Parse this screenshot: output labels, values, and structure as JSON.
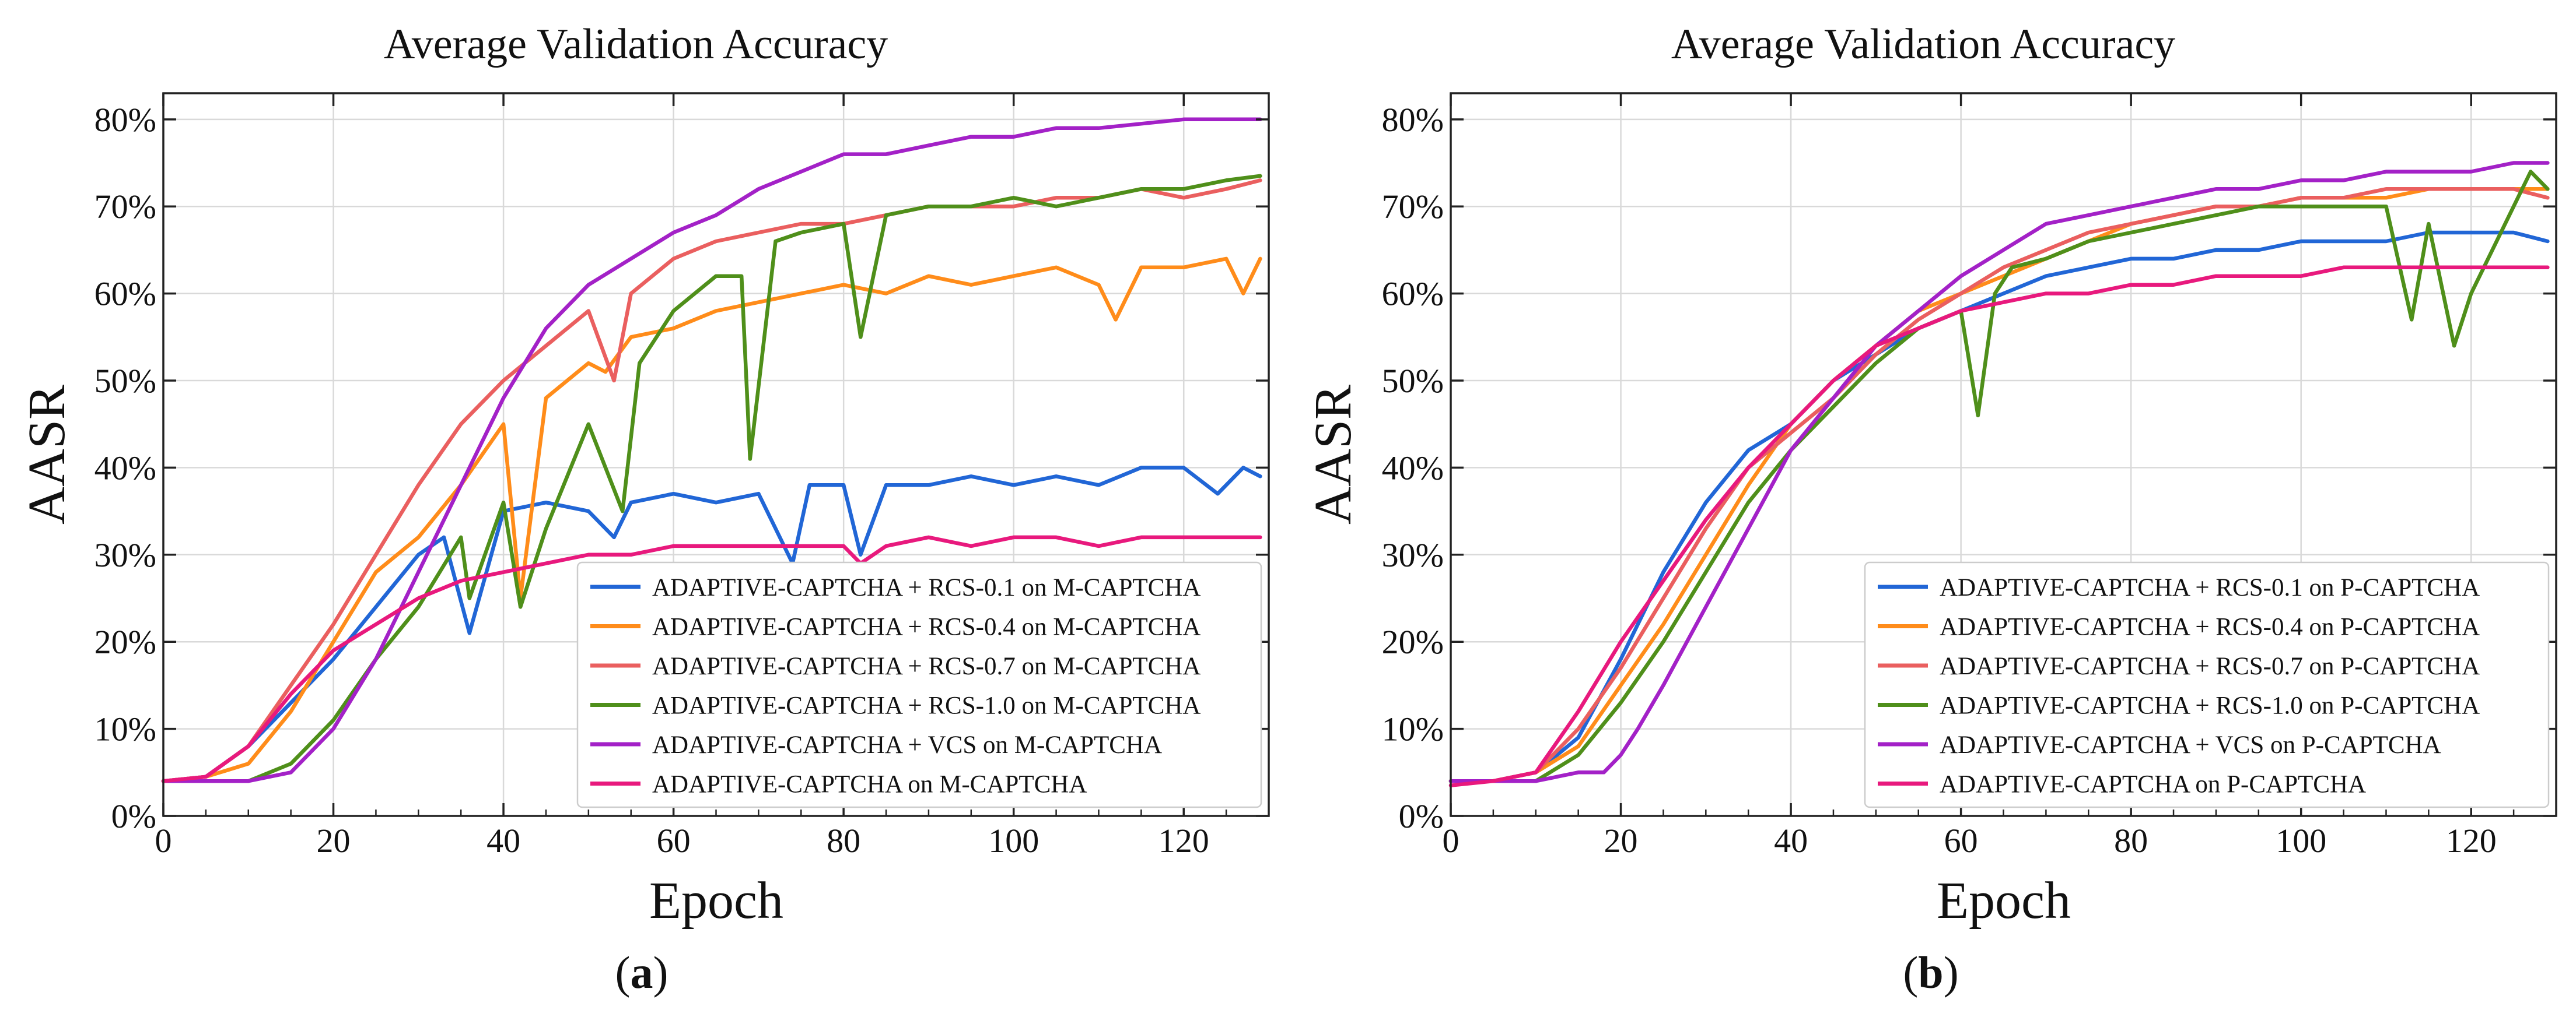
{
  "chart_data": [
    {
      "type": "line",
      "panel": "a",
      "title": "Average Validation Accuracy",
      "xlabel": "Epoch",
      "ylabel": "AASR",
      "caption_letter": "a",
      "xlim": [
        0,
        130
      ],
      "ylim": [
        0,
        0.83
      ],
      "xticks": [
        0,
        20,
        40,
        60,
        80,
        100,
        120
      ],
      "yticks": [
        0,
        0.1,
        0.2,
        0.3,
        0.4,
        0.5,
        0.6,
        0.7,
        0.8
      ],
      "ytick_labels": [
        "0%",
        "10%",
        "20%",
        "30%",
        "40%",
        "50%",
        "60%",
        "70%",
        "80%"
      ],
      "grid": true,
      "legend_position": "lower-right",
      "series": [
        {
          "name": "ADAPTIVE-CAPTCHA + RCS-0.1 on M-CAPTCHA",
          "color": "#2166d6",
          "x": [
            0,
            5,
            10,
            15,
            20,
            25,
            30,
            33,
            36,
            38,
            40,
            45,
            50,
            53,
            55,
            60,
            65,
            70,
            74,
            76,
            80,
            82,
            85,
            90,
            95,
            100,
            105,
            110,
            115,
            120,
            124,
            127,
            129
          ],
          "y": [
            0.04,
            0.045,
            0.08,
            0.13,
            0.18,
            0.24,
            0.3,
            0.32,
            0.21,
            0.28,
            0.35,
            0.36,
            0.35,
            0.32,
            0.36,
            0.37,
            0.36,
            0.37,
            0.29,
            0.38,
            0.38,
            0.3,
            0.38,
            0.38,
            0.39,
            0.38,
            0.39,
            0.38,
            0.4,
            0.4,
            0.37,
            0.4,
            0.39
          ]
        },
        {
          "name": "ADAPTIVE-CAPTCHA + RCS-0.4 on M-CAPTCHA",
          "color": "#ff8c1a",
          "x": [
            0,
            5,
            10,
            15,
            20,
            25,
            30,
            35,
            40,
            42,
            45,
            50,
            52,
            55,
            60,
            65,
            70,
            75,
            80,
            85,
            90,
            95,
            100,
            105,
            110,
            112,
            115,
            120,
            125,
            127,
            129
          ],
          "y": [
            0.04,
            0.045,
            0.06,
            0.12,
            0.2,
            0.28,
            0.32,
            0.38,
            0.45,
            0.25,
            0.48,
            0.52,
            0.51,
            0.55,
            0.56,
            0.58,
            0.59,
            0.6,
            0.61,
            0.6,
            0.62,
            0.61,
            0.62,
            0.63,
            0.61,
            0.57,
            0.63,
            0.63,
            0.64,
            0.6,
            0.64
          ]
        },
        {
          "name": "ADAPTIVE-CAPTCHA + RCS-0.7 on M-CAPTCHA",
          "color": "#ea5f5f",
          "x": [
            0,
            5,
            10,
            15,
            20,
            25,
            30,
            35,
            40,
            45,
            50,
            53,
            55,
            60,
            65,
            70,
            75,
            80,
            85,
            90,
            95,
            100,
            105,
            110,
            115,
            120,
            125,
            129
          ],
          "y": [
            0.04,
            0.045,
            0.08,
            0.15,
            0.22,
            0.3,
            0.38,
            0.45,
            0.5,
            0.54,
            0.58,
            0.5,
            0.6,
            0.64,
            0.66,
            0.67,
            0.68,
            0.68,
            0.69,
            0.7,
            0.7,
            0.7,
            0.71,
            0.71,
            0.72,
            0.71,
            0.72,
            0.73
          ]
        },
        {
          "name": "ADAPTIVE-CAPTCHA + RCS-1.0 on M-CAPTCHA",
          "color": "#4f8f1a",
          "x": [
            0,
            5,
            10,
            15,
            20,
            25,
            30,
            35,
            36,
            40,
            42,
            45,
            50,
            54,
            56,
            60,
            65,
            68,
            69,
            72,
            75,
            80,
            82,
            85,
            90,
            95,
            100,
            105,
            110,
            115,
            120,
            125,
            129
          ],
          "y": [
            0.04,
            0.04,
            0.04,
            0.06,
            0.11,
            0.18,
            0.24,
            0.32,
            0.25,
            0.36,
            0.24,
            0.33,
            0.45,
            0.35,
            0.52,
            0.58,
            0.62,
            0.62,
            0.41,
            0.66,
            0.67,
            0.68,
            0.55,
            0.69,
            0.7,
            0.7,
            0.71,
            0.7,
            0.71,
            0.72,
            0.72,
            0.73,
            0.735
          ]
        },
        {
          "name": "ADAPTIVE-CAPTCHA + VCS on M-CAPTCHA",
          "color": "#a321c7",
          "x": [
            0,
            5,
            10,
            15,
            20,
            25,
            30,
            35,
            40,
            45,
            50,
            55,
            60,
            65,
            70,
            75,
            80,
            85,
            90,
            95,
            100,
            105,
            110,
            115,
            120,
            125,
            129
          ],
          "y": [
            0.04,
            0.04,
            0.04,
            0.05,
            0.1,
            0.18,
            0.28,
            0.38,
            0.48,
            0.56,
            0.61,
            0.64,
            0.67,
            0.69,
            0.72,
            0.74,
            0.76,
            0.76,
            0.77,
            0.78,
            0.78,
            0.79,
            0.79,
            0.795,
            0.8,
            0.8,
            0.8
          ]
        },
        {
          "name": "ADAPTIVE-CAPTCHA on M-CAPTCHA",
          "color": "#e8197d",
          "x": [
            0,
            5,
            10,
            15,
            20,
            25,
            30,
            35,
            40,
            45,
            50,
            55,
            60,
            65,
            70,
            75,
            80,
            82,
            85,
            90,
            95,
            100,
            105,
            110,
            115,
            120,
            125,
            129
          ],
          "y": [
            0.04,
            0.045,
            0.08,
            0.14,
            0.19,
            0.22,
            0.25,
            0.27,
            0.28,
            0.29,
            0.3,
            0.3,
            0.31,
            0.31,
            0.31,
            0.31,
            0.31,
            0.29,
            0.31,
            0.32,
            0.31,
            0.32,
            0.32,
            0.31,
            0.32,
            0.32,
            0.32,
            0.32
          ]
        }
      ]
    },
    {
      "type": "line",
      "panel": "b",
      "title": "Average Validation Accuracy",
      "xlabel": "Epoch",
      "ylabel": "AASR",
      "caption_letter": "b",
      "xlim": [
        0,
        130
      ],
      "ylim": [
        0,
        0.83
      ],
      "xticks": [
        0,
        20,
        40,
        60,
        80,
        100,
        120
      ],
      "yticks": [
        0,
        0.1,
        0.2,
        0.3,
        0.4,
        0.5,
        0.6,
        0.7,
        0.8
      ],
      "ytick_labels": [
        "0%",
        "10%",
        "20%",
        "30%",
        "40%",
        "50%",
        "60%",
        "70%",
        "80%"
      ],
      "grid": true,
      "legend_position": "lower-right",
      "series": [
        {
          "name": "ADAPTIVE-CAPTCHA + RCS-0.1 on P-CAPTCHA",
          "color": "#2166d6",
          "x": [
            0,
            5,
            10,
            15,
            20,
            25,
            30,
            35,
            40,
            45,
            50,
            55,
            60,
            65,
            70,
            75,
            80,
            85,
            90,
            95,
            100,
            105,
            110,
            115,
            120,
            125,
            129
          ],
          "y": [
            0.04,
            0.04,
            0.05,
            0.09,
            0.18,
            0.28,
            0.36,
            0.42,
            0.45,
            0.5,
            0.53,
            0.56,
            0.58,
            0.6,
            0.62,
            0.63,
            0.64,
            0.64,
            0.65,
            0.65,
            0.66,
            0.66,
            0.66,
            0.67,
            0.67,
            0.67,
            0.66
          ]
        },
        {
          "name": "ADAPTIVE-CAPTCHA + RCS-0.4 on P-CAPTCHA",
          "color": "#ff8c1a",
          "x": [
            0,
            5,
            10,
            15,
            20,
            25,
            30,
            35,
            40,
            45,
            50,
            55,
            60,
            65,
            70,
            75,
            80,
            85,
            90,
            95,
            100,
            105,
            110,
            115,
            120,
            125,
            129
          ],
          "y": [
            0.04,
            0.04,
            0.05,
            0.08,
            0.15,
            0.22,
            0.3,
            0.38,
            0.45,
            0.5,
            0.54,
            0.58,
            0.6,
            0.62,
            0.64,
            0.66,
            0.68,
            0.69,
            0.7,
            0.7,
            0.71,
            0.71,
            0.71,
            0.72,
            0.72,
            0.72,
            0.72
          ]
        },
        {
          "name": "ADAPTIVE-CAPTCHA + RCS-0.7 on P-CAPTCHA",
          "color": "#ea5f5f",
          "x": [
            0,
            5,
            10,
            15,
            20,
            25,
            30,
            35,
            40,
            45,
            50,
            55,
            60,
            65,
            70,
            75,
            80,
            85,
            90,
            95,
            100,
            105,
            110,
            115,
            120,
            125,
            129
          ],
          "y": [
            0.04,
            0.04,
            0.05,
            0.1,
            0.17,
            0.25,
            0.33,
            0.4,
            0.44,
            0.48,
            0.53,
            0.57,
            0.6,
            0.63,
            0.65,
            0.67,
            0.68,
            0.69,
            0.7,
            0.7,
            0.71,
            0.71,
            0.72,
            0.72,
            0.72,
            0.72,
            0.71
          ]
        },
        {
          "name": "ADAPTIVE-CAPTCHA + RCS-1.0 on P-CAPTCHA",
          "color": "#4f8f1a",
          "x": [
            0,
            5,
            10,
            15,
            20,
            25,
            30,
            35,
            40,
            45,
            50,
            55,
            60,
            62,
            64,
            66,
            70,
            75,
            80,
            85,
            90,
            95,
            100,
            105,
            110,
            113,
            115,
            118,
            120,
            125,
            127,
            129
          ],
          "y": [
            0.04,
            0.04,
            0.04,
            0.07,
            0.13,
            0.2,
            0.28,
            0.36,
            0.42,
            0.47,
            0.52,
            0.56,
            0.58,
            0.46,
            0.6,
            0.63,
            0.64,
            0.66,
            0.67,
            0.68,
            0.69,
            0.7,
            0.7,
            0.7,
            0.7,
            0.57,
            0.68,
            0.54,
            0.6,
            0.7,
            0.74,
            0.72
          ]
        },
        {
          "name": "ADAPTIVE-CAPTCHA + VCS on P-CAPTCHA",
          "color": "#a321c7",
          "x": [
            0,
            5,
            10,
            15,
            18,
            20,
            22,
            25,
            30,
            35,
            40,
            45,
            50,
            55,
            60,
            65,
            70,
            75,
            80,
            85,
            90,
            95,
            100,
            105,
            110,
            115,
            120,
            125,
            129
          ],
          "y": [
            0.04,
            0.04,
            0.04,
            0.05,
            0.05,
            0.07,
            0.1,
            0.15,
            0.24,
            0.33,
            0.42,
            0.48,
            0.54,
            0.58,
            0.62,
            0.65,
            0.68,
            0.69,
            0.7,
            0.71,
            0.72,
            0.72,
            0.73,
            0.73,
            0.74,
            0.74,
            0.74,
            0.75,
            0.75
          ]
        },
        {
          "name": "ADAPTIVE-CAPTCHA on P-CAPTCHA",
          "color": "#e8197d",
          "x": [
            0,
            5,
            10,
            15,
            20,
            25,
            30,
            35,
            40,
            45,
            50,
            55,
            60,
            65,
            70,
            75,
            80,
            85,
            90,
            95,
            100,
            105,
            110,
            115,
            120,
            125,
            129
          ],
          "y": [
            0.035,
            0.04,
            0.05,
            0.12,
            0.2,
            0.27,
            0.34,
            0.4,
            0.45,
            0.5,
            0.54,
            0.56,
            0.58,
            0.59,
            0.6,
            0.6,
            0.61,
            0.61,
            0.62,
            0.62,
            0.62,
            0.63,
            0.63,
            0.63,
            0.63,
            0.63,
            0.63
          ]
        }
      ]
    }
  ]
}
